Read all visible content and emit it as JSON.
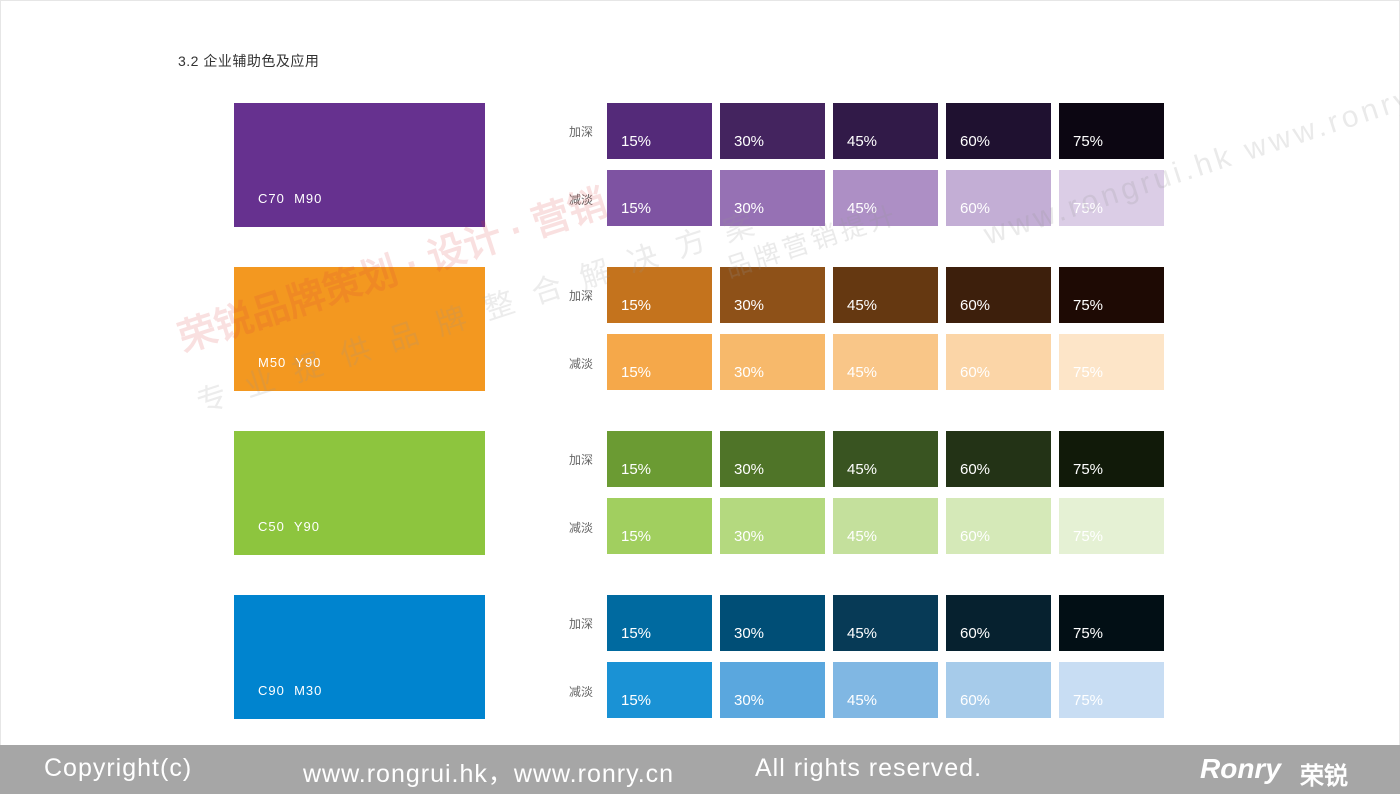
{
  "section_title": "3.2  企业辅助色及应用",
  "row_labels": {
    "dark": "加深",
    "light": "减淡"
  },
  "percent_labels": [
    "15%",
    "30%",
    "45%",
    "60%",
    "75%"
  ],
  "groups": [
    {
      "code": "C70  M90",
      "base": "#66318f",
      "dark": [
        "#542a79",
        "#44245f",
        "#311a48",
        "#1f1130",
        "#0c0612"
      ],
      "light": [
        "#7e53a2",
        "#9671b4",
        "#ad8fc5",
        "#c3aed5",
        "#dbcde6"
      ]
    },
    {
      "code": "M50  Y90",
      "base": "#f39820",
      "dark": [
        "#c4731d",
        "#8e5118",
        "#653811",
        "#3d1f0c",
        "#1e0a04"
      ],
      "light": [
        "#f5a84a",
        "#f7b96b",
        "#f9c688",
        "#fbd5a7",
        "#fde5c8"
      ]
    },
    {
      "code": "C50  Y90",
      "base": "#8dc53e",
      "dark": [
        "#6b9b33",
        "#4f7428",
        "#395421",
        "#233316",
        "#111a09"
      ],
      "light": [
        "#a1cf5f",
        "#b4d97f",
        "#c4e09c",
        "#d5e9b8",
        "#e5f1d4"
      ]
    },
    {
      "code": "C90  M30",
      "base": "#0084cf",
      "dark": [
        "#006aa0",
        "#004e76",
        "#073a56",
        "#06212f",
        "#020f15"
      ],
      "light": [
        "#1a92d5",
        "#5aa7de",
        "#80b7e3",
        "#a6cbea",
        "#c8ddf3"
      ]
    }
  ],
  "watermarks": {
    "line1": "荣锐品牌策划 · 设计 · 营销",
    "line2": "专 业 提 供 品 牌 整 合 解 决 方 案",
    "line3": "品牌营销提升",
    "line4": "www.rongrui.hk  www.ronry.cn"
  },
  "footer": {
    "copyright": "Copyright(c)",
    "urls": "www.rongrui.hk，www.ronry.cn",
    "rights": "All rights reserved.",
    "logo_latin": "Ronry",
    "logo_cn": "荣锐"
  }
}
